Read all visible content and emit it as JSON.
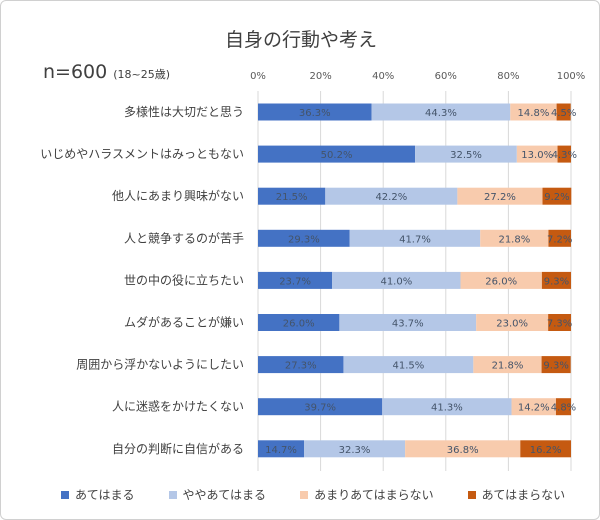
{
  "chart_data": {
    "type": "bar",
    "stacked": true,
    "orientation": "horizontal",
    "title": "自身の行動や考え",
    "subtitle_n": "n=600",
    "subtitle_age": "(18~25歳)",
    "xlim": [
      0,
      100
    ],
    "xticks": [
      "0%",
      "20%",
      "40%",
      "60%",
      "80%",
      "100%"
    ],
    "categories": [
      "多様性は大切だと思う",
      "いじめやハラスメントはみっともない",
      "他人にあまり興味がない",
      "人と競争するのが苦手",
      "世の中の役に立ちたい",
      "ムダがあることが嫌い",
      "周囲から浮かないようにしたい",
      "人に迷惑をかけたくない",
      "自分の判断に自信がある"
    ],
    "series": [
      {
        "name": "あてはまる",
        "color": "#4472c4",
        "values": [
          36.3,
          50.2,
          21.5,
          29.3,
          23.7,
          26.0,
          27.3,
          39.7,
          14.7
        ]
      },
      {
        "name": "ややあてはまる",
        "color": "#b4c7e7",
        "values": [
          44.3,
          32.5,
          42.2,
          41.7,
          41.0,
          43.7,
          41.5,
          41.3,
          32.3
        ]
      },
      {
        "name": "あまりあてはまらない",
        "color": "#f8cbad",
        "values": [
          14.8,
          13.0,
          27.2,
          21.8,
          26.0,
          23.0,
          21.8,
          14.2,
          36.8
        ]
      },
      {
        "name": "あてはまらない",
        "color": "#c55a11",
        "values": [
          4.5,
          4.3,
          9.2,
          7.2,
          9.3,
          7.3,
          9.3,
          4.8,
          16.2
        ]
      }
    ],
    "grid": true,
    "legend": "bottom"
  }
}
